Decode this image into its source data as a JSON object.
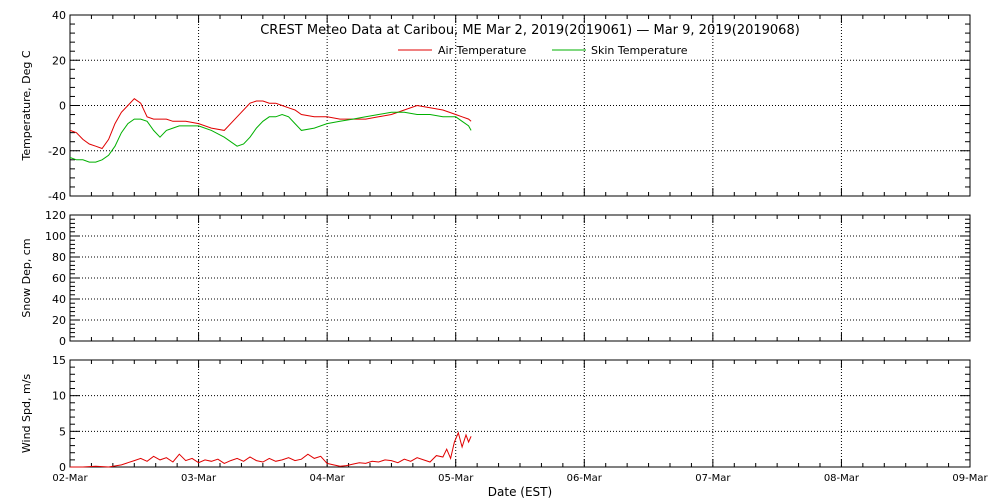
{
  "title": "CREST Meteo Data at Caribou, ME   Mar  2, 2019(2019061) — Mar  9, 2019(2019068)",
  "xlabel": "Date (EST)",
  "x_tick_labels": [
    "02-Mar",
    "03-Mar",
    "04-Mar",
    "05-Mar",
    "06-Mar",
    "07-Mar",
    "08-Mar",
    "09-Mar"
  ],
  "colors": {
    "air": "#e00000",
    "skin": "#00b000",
    "axes": "#000000",
    "background": "#ffffff"
  },
  "chart_data": [
    {
      "type": "line",
      "ylabel": "Temperature, Deg C",
      "xlim": [
        0,
        7
      ],
      "ylim": [
        -40,
        40
      ],
      "y_ticks": [
        -40,
        -20,
        0,
        20,
        40
      ],
      "grid": true,
      "legend": "top-center",
      "series": [
        {
          "name": "Air Temperature",
          "color": "#e00000",
          "x": [
            0,
            0.05,
            0.1,
            0.15,
            0.2,
            0.25,
            0.3,
            0.35,
            0.4,
            0.45,
            0.5,
            0.55,
            0.6,
            0.65,
            0.7,
            0.75,
            0.8,
            0.85,
            0.9,
            1.0,
            1.1,
            1.2,
            1.3,
            1.4,
            1.45,
            1.5,
            1.55,
            1.6,
            1.65,
            1.7,
            1.75,
            1.8,
            1.9,
            2.0,
            2.1,
            2.2,
            2.3,
            2.4,
            2.5,
            2.6,
            2.7,
            2.8,
            2.9,
            3.0,
            3.05,
            3.1,
            3.12
          ],
          "y": [
            -11,
            -12,
            -15,
            -17,
            -18,
            -19,
            -15,
            -8,
            -3,
            0,
            3,
            1,
            -5,
            -6,
            -6,
            -6,
            -7,
            -7,
            -7,
            -8,
            -10,
            -11,
            -5,
            1,
            2,
            2,
            1,
            1,
            0,
            -1,
            -2,
            -4,
            -5,
            -5,
            -6,
            -6,
            -6,
            -5,
            -4,
            -2,
            0,
            -1,
            -2,
            -4,
            -5,
            -6,
            -7
          ]
        },
        {
          "name": "Skin Temperature",
          "color": "#00b000",
          "x": [
            0,
            0.05,
            0.1,
            0.15,
            0.2,
            0.25,
            0.3,
            0.35,
            0.4,
            0.45,
            0.5,
            0.55,
            0.6,
            0.65,
            0.7,
            0.75,
            0.8,
            0.85,
            0.9,
            1.0,
            1.1,
            1.2,
            1.3,
            1.35,
            1.4,
            1.45,
            1.5,
            1.55,
            1.6,
            1.65,
            1.7,
            1.75,
            1.8,
            1.9,
            2.0,
            2.1,
            2.2,
            2.3,
            2.4,
            2.5,
            2.6,
            2.7,
            2.8,
            2.9,
            3.0,
            3.05,
            3.1,
            3.12
          ],
          "y": [
            -23,
            -24,
            -24,
            -25,
            -25,
            -24,
            -22,
            -18,
            -12,
            -8,
            -6,
            -6,
            -7,
            -11,
            -14,
            -11,
            -10,
            -9,
            -9,
            -9,
            -11,
            -14,
            -18,
            -17,
            -14,
            -10,
            -7,
            -5,
            -5,
            -4,
            -5,
            -8,
            -11,
            -10,
            -8,
            -7,
            -6,
            -5,
            -4,
            -3,
            -3,
            -4,
            -4,
            -5,
            -5,
            -7,
            -9,
            -11
          ]
        }
      ]
    },
    {
      "type": "line",
      "ylabel": "Snow Dep, cm",
      "xlim": [
        0,
        7
      ],
      "ylim": [
        0,
        120
      ],
      "y_ticks": [
        0,
        20,
        40,
        60,
        80,
        100,
        120
      ],
      "grid": true,
      "series": []
    },
    {
      "type": "line",
      "ylabel": "Wind Spd, m/s",
      "xlim": [
        0,
        7
      ],
      "ylim": [
        0,
        15
      ],
      "y_ticks": [
        0,
        5,
        10,
        15
      ],
      "grid": true,
      "series": [
        {
          "color": "#e00000",
          "x": [
            0,
            0.1,
            0.2,
            0.3,
            0.4,
            0.45,
            0.5,
            0.55,
            0.6,
            0.65,
            0.7,
            0.75,
            0.8,
            0.85,
            0.9,
            0.95,
            1.0,
            1.05,
            1.1,
            1.15,
            1.2,
            1.25,
            1.3,
            1.35,
            1.4,
            1.45,
            1.5,
            1.55,
            1.6,
            1.65,
            1.7,
            1.75,
            1.8,
            1.85,
            1.9,
            1.95,
            2.0,
            2.05,
            2.1,
            2.15,
            2.2,
            2.25,
            2.3,
            2.35,
            2.4,
            2.45,
            2.5,
            2.55,
            2.6,
            2.65,
            2.7,
            2.75,
            2.8,
            2.85,
            2.9,
            2.93,
            2.96,
            2.99,
            3.02,
            3.05,
            3.08,
            3.1,
            3.12
          ],
          "y": [
            0,
            0,
            0.1,
            0,
            0.3,
            0.6,
            0.9,
            1.2,
            0.8,
            1.5,
            1.0,
            1.3,
            0.7,
            1.8,
            0.9,
            1.2,
            0.6,
            1.0,
            0.8,
            1.1,
            0.5,
            0.9,
            1.2,
            0.8,
            1.4,
            0.9,
            0.7,
            1.2,
            0.8,
            1.0,
            1.3,
            0.9,
            1.1,
            1.8,
            1.2,
            1.5,
            0.5,
            0.3,
            0.1,
            0.2,
            0.4,
            0.6,
            0.5,
            0.8,
            0.7,
            1.0,
            0.9,
            0.6,
            1.1,
            0.8,
            1.3,
            1.0,
            0.7,
            1.6,
            1.4,
            2.5,
            1.2,
            3.5,
            4.8,
            2.8,
            4.5,
            3.5,
            4.3
          ]
        }
      ]
    }
  ]
}
